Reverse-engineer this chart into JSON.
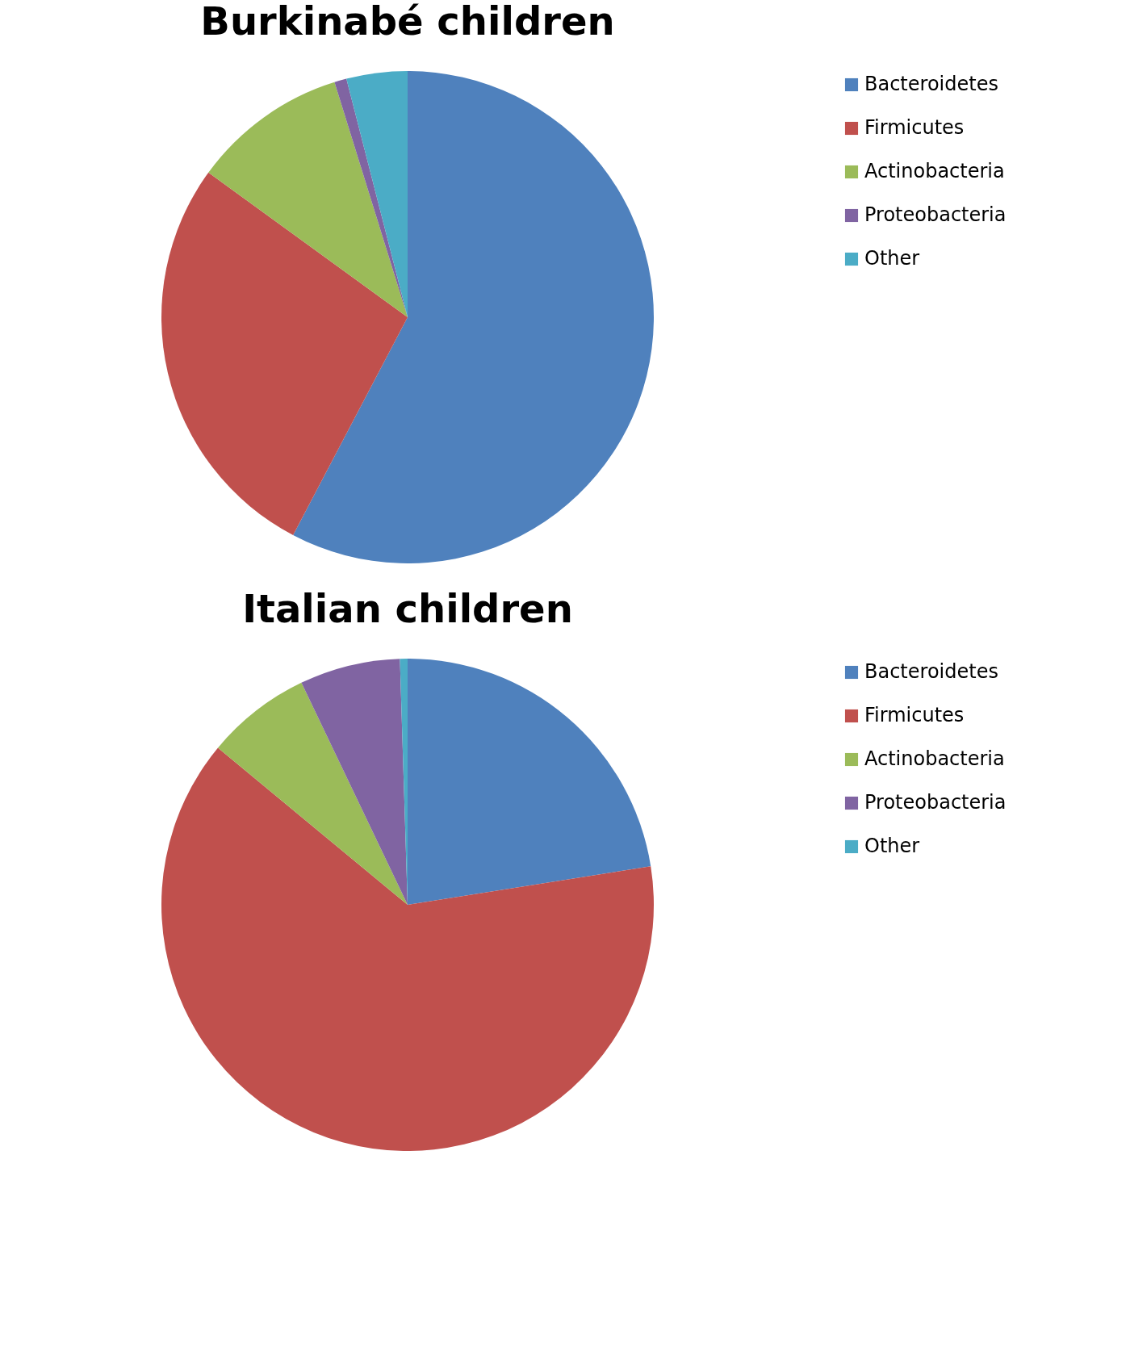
{
  "chart_data": [
    {
      "type": "pie",
      "title": "Burkinabé children",
      "categories": [
        "Bacteroidetes",
        "Firmicutes",
        "Actinobacteria",
        "Proteobacteria",
        "Other"
      ],
      "values": [
        57.7,
        27.3,
        10.2,
        0.8,
        4.0
      ],
      "colors": [
        "#4f81bd",
        "#c0504d",
        "#9bbb59",
        "#8064a2",
        "#4bacc6"
      ],
      "legend": "right"
    },
    {
      "type": "pie",
      "title": "Italian children",
      "categories": [
        "Bacteroidetes",
        "Firmicutes",
        "Actinobacteria",
        "Proteobacteria",
        "Other"
      ],
      "values": [
        22.5,
        63.5,
        6.9,
        6.6,
        0.5
      ],
      "colors": [
        "#4f81bd",
        "#c0504d",
        "#9bbb59",
        "#8064a2",
        "#4bacc6"
      ],
      "legend": "right"
    }
  ]
}
